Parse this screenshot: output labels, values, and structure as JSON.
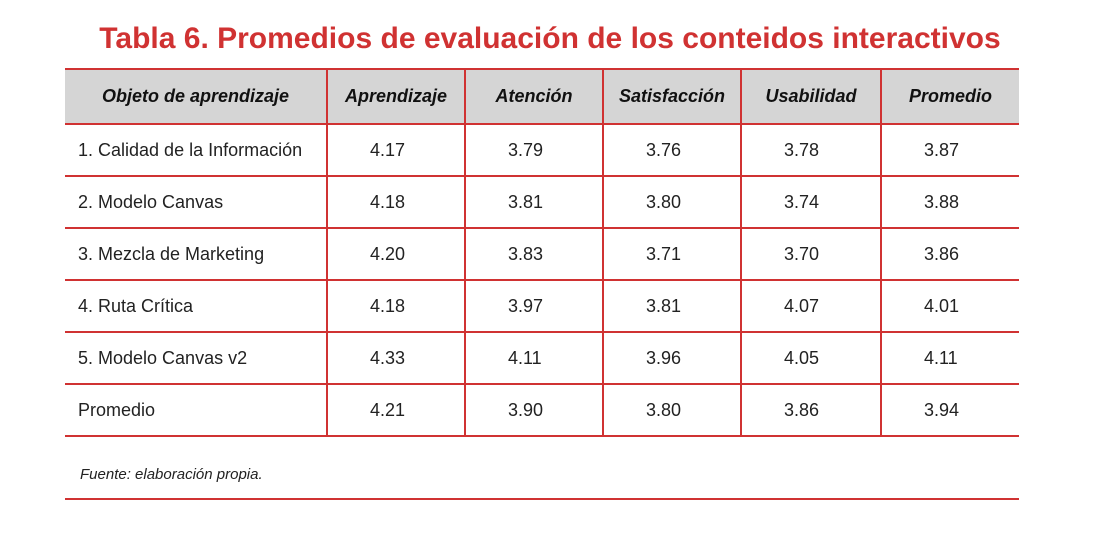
{
  "title": "Tabla 6. Promedios de evaluación de los conteidos interactivos",
  "headers": [
    "Objeto de aprendizaje",
    "Aprendizaje",
    "Atención",
    "Satisfacción",
    "Usabilidad",
    "Promedio"
  ],
  "rows": [
    [
      "1. Calidad de la Información",
      "4.17",
      "3.79",
      "3.76",
      "3.78",
      "3.87"
    ],
    [
      "2. Modelo Canvas",
      "4.18",
      "3.81",
      "3.80",
      "3.74",
      "3.88"
    ],
    [
      "3. Mezcla de Marketing",
      "4.20",
      "3.83",
      "3.71",
      "3.70",
      "3.86"
    ],
    [
      "4. Ruta Crítica",
      "4.18",
      "3.97",
      "3.81",
      "4.07",
      "4.01"
    ],
    [
      "5. Modelo Canvas v2",
      "4.33",
      "4.11",
      "3.96",
      "4.05",
      "4.11"
    ],
    [
      "Promedio",
      "4.21",
      "3.90",
      "3.80",
      "3.86",
      "3.94"
    ]
  ],
  "source": "Fuente: elaboración propia.",
  "colors": {
    "accent": "#d03232",
    "header_bg": "#d5d5d5"
  }
}
